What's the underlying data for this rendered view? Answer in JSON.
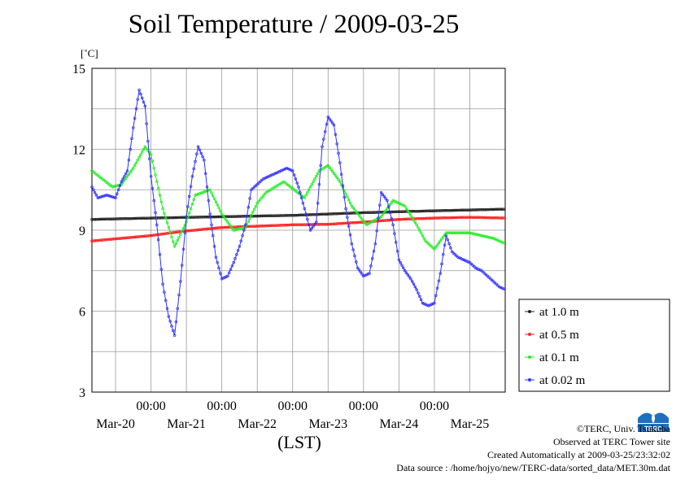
{
  "title": "Soil Temperature / 2009-03-25",
  "chart_data": {
    "type": "line",
    "title": "Soil Temperature / 2009-03-25",
    "ylabel": "[˚C]",
    "xlabel": "(LST)",
    "ylim": [
      3,
      15
    ],
    "yticks": [
      3,
      6,
      9,
      12,
      15
    ],
    "xlim_hours": [
      -20,
      120
    ],
    "x_tick_time_labels": [
      "00:00",
      "00:00",
      "00:00",
      "00:00",
      "00:00"
    ],
    "x_date_labels": [
      "Mar-20",
      "Mar-21",
      "Mar-22",
      "Mar-23",
      "Mar-24",
      "Mar-25"
    ],
    "grid": true,
    "legend_position": "right",
    "series": [
      {
        "name": "at 1.0 m",
        "color": "#222222",
        "x": [
          -20,
          0,
          24,
          48,
          72,
          96,
          120
        ],
        "values": [
          9.4,
          9.45,
          9.5,
          9.55,
          9.65,
          9.72,
          9.78
        ]
      },
      {
        "name": "at 0.5 m",
        "color": "#ff2020",
        "x": [
          -20,
          0,
          10,
          24,
          36,
          48,
          60,
          72,
          84,
          96,
          108,
          120
        ],
        "values": [
          8.6,
          8.8,
          8.95,
          9.1,
          9.15,
          9.2,
          9.22,
          9.3,
          9.4,
          9.45,
          9.48,
          9.45
        ]
      },
      {
        "name": "at 0.1 m",
        "color": "#22ee22",
        "x": [
          -20,
          -13,
          -10,
          -6,
          -2,
          0,
          4,
          8,
          12,
          15,
          20,
          24,
          28,
          32,
          36,
          39,
          45,
          52,
          57,
          60,
          64,
          68,
          73,
          78,
          82,
          86,
          90,
          93,
          96,
          100,
          104,
          108,
          112,
          116,
          120
        ],
        "values": [
          11.2,
          10.6,
          10.7,
          11.3,
          12.1,
          11.8,
          9.8,
          8.4,
          9.3,
          10.3,
          10.5,
          9.6,
          9.0,
          9.1,
          10.0,
          10.4,
          10.8,
          10.2,
          11.2,
          11.4,
          10.8,
          9.9,
          9.2,
          9.5,
          10.1,
          9.9,
          9.2,
          8.6,
          8.3,
          8.9,
          8.9,
          8.9,
          8.8,
          8.7,
          8.5
        ]
      },
      {
        "name": "at 0.02 m",
        "color": "#3030ff",
        "x": [
          -20,
          -18,
          -15,
          -12,
          -10,
          -8,
          -6,
          -4,
          -2,
          0,
          2,
          4,
          6,
          8,
          10,
          12,
          14,
          16,
          18,
          20,
          22,
          24,
          26,
          28,
          30,
          32,
          34,
          36,
          38,
          42,
          46,
          48,
          50,
          52,
          54,
          56,
          58,
          60,
          62,
          64,
          66,
          68,
          70,
          72,
          74,
          76,
          78,
          80,
          82,
          84,
          86,
          88,
          90,
          92,
          94,
          96,
          98,
          100,
          102,
          104,
          106,
          108,
          110,
          112,
          114,
          116,
          118,
          120
        ],
        "values": [
          10.6,
          10.2,
          10.3,
          10.2,
          10.8,
          11.2,
          12.8,
          14.2,
          13.6,
          11.0,
          9.2,
          7.0,
          5.8,
          5.1,
          7.1,
          9.5,
          11.0,
          12.1,
          11.6,
          9.6,
          8.0,
          7.2,
          7.3,
          7.8,
          8.4,
          9.2,
          10.5,
          10.7,
          10.9,
          11.1,
          11.3,
          11.2,
          10.6,
          9.8,
          9.0,
          9.3,
          12.1,
          13.2,
          12.9,
          11.5,
          9.8,
          8.5,
          7.6,
          7.3,
          7.4,
          8.5,
          10.4,
          10.1,
          9.2,
          7.9,
          7.5,
          7.2,
          6.8,
          6.3,
          6.2,
          6.3,
          7.4,
          8.8,
          8.2,
          8.0,
          7.9,
          7.8,
          7.6,
          7.5,
          7.3,
          7.1,
          6.9,
          6.8
        ]
      }
    ]
  },
  "footer": {
    "copyright": "©TERC, Univ. Tsukuba",
    "observed": "Observed at TERC Tower site",
    "created": "Created Automatically at 2009-03-25/23:32:02",
    "source": "Data source : /home/hojyo/new/TERC-data/sorted_data/MET.30m.dat"
  },
  "logo": {
    "text": "TERC",
    "color": "#1f6fbf"
  }
}
